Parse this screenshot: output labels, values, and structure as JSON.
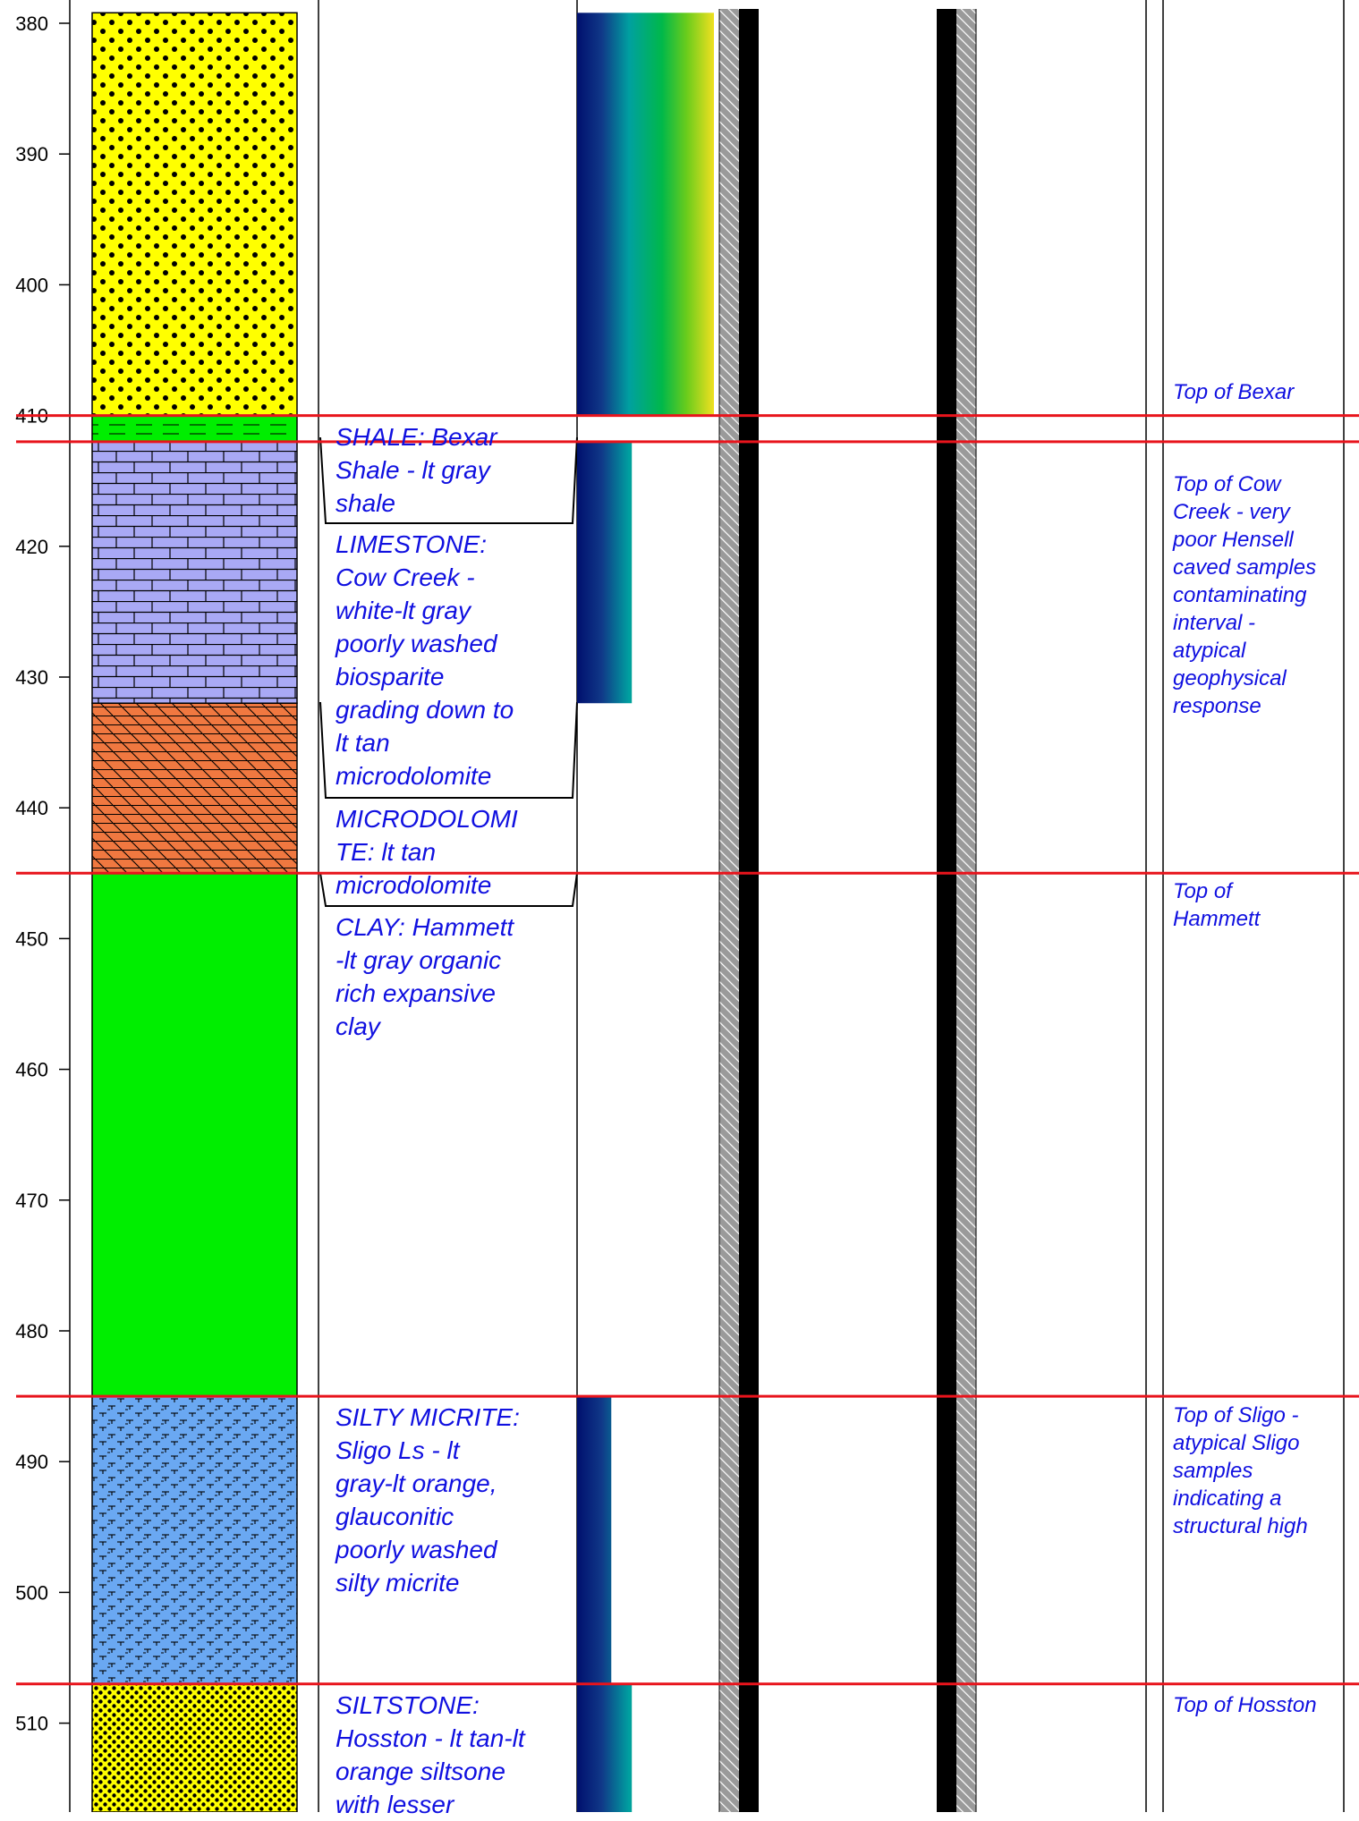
{
  "depth_axis": {
    "ticks": [
      380,
      390,
      400,
      410,
      420,
      430,
      440,
      450,
      460,
      470,
      480,
      490,
      500,
      510
    ]
  },
  "lithology": [
    {
      "id": "sand",
      "top": 379.2,
      "base": 410.0,
      "pattern": "dots-yellow"
    },
    {
      "id": "shale",
      "top": 410.0,
      "base": 412.0,
      "pattern": "shale-green"
    },
    {
      "id": "limestone",
      "top": 412.0,
      "base": 432.0,
      "pattern": "brick-lavender"
    },
    {
      "id": "dolomite",
      "top": 432.0,
      "base": 445.0,
      "pattern": "dolomite-orange"
    },
    {
      "id": "clay",
      "top": 445.0,
      "base": 485.0,
      "pattern": "solid-green"
    },
    {
      "id": "silty-micrite",
      "top": 485.0,
      "base": 507.0,
      "pattern": "micrite-blue"
    },
    {
      "id": "siltstone",
      "top": 507.0,
      "base": 517.0,
      "pattern": "dense-dots-yellow"
    }
  ],
  "descriptions": [
    {
      "lines": [
        "SHALE: Bexar",
        "Shale - lt gray",
        "shale"
      ]
    },
    {
      "lines": [
        "LIMESTONE:",
        "Cow Creek -",
        "white-lt gray",
        "poorly washed",
        "biosparite",
        "grading down to",
        "lt tan",
        "microdolomite"
      ]
    },
    {
      "lines": [
        "MICRODOLOMI",
        "TE: lt tan",
        "microdolomite"
      ]
    },
    {
      "lines": [
        "CLAY: Hammett",
        "-lt gray organic",
        "rich expansive",
        "clay"
      ]
    },
    {
      "lines": [
        "SILTY MICRITE:",
        "Sligo Ls - lt",
        "gray-lt orange,",
        "glauconitic",
        "poorly washed",
        "silty micrite"
      ]
    },
    {
      "lines": [
        "SILTSTONE:",
        "Hosston - lt tan-lt",
        "orange siltsone",
        "with lesser"
      ]
    }
  ],
  "grain_size_bars": [
    {
      "top": 379.2,
      "base": 410.0,
      "grade": 1.0
    },
    {
      "top": 412.0,
      "base": 432.0,
      "grade": 0.4
    },
    {
      "top": 485.0,
      "base": 507.0,
      "grade": 0.25
    },
    {
      "top": 507.0,
      "base": 517.0,
      "grade": 0.4
    }
  ],
  "formation_tops": [
    {
      "depth": 410.0
    },
    {
      "depth": 412.0
    },
    {
      "depth": 445.0
    },
    {
      "depth": 485.0
    },
    {
      "depth": 507.0
    }
  ],
  "remarks": [
    {
      "lines": [
        "Top of Bexar"
      ]
    },
    {
      "lines": [
        "Top of Cow",
        "Creek - very",
        "poor Hensell",
        "caved samples",
        "contaminating",
        "interval -",
        "atypical",
        "geophysical",
        "response"
      ]
    },
    {
      "lines": [
        "Top of",
        "Hammett"
      ]
    },
    {
      "lines": [
        "Top of Sligo -",
        "atypical Sligo",
        "samples",
        "indicating a",
        "structural high"
      ]
    },
    {
      "lines": [
        "Top of Hosston"
      ]
    }
  ],
  "colors": {
    "formation_top_line": "#e8141c",
    "description_text": "#1010e0",
    "remark_text": "#1010e0"
  }
}
